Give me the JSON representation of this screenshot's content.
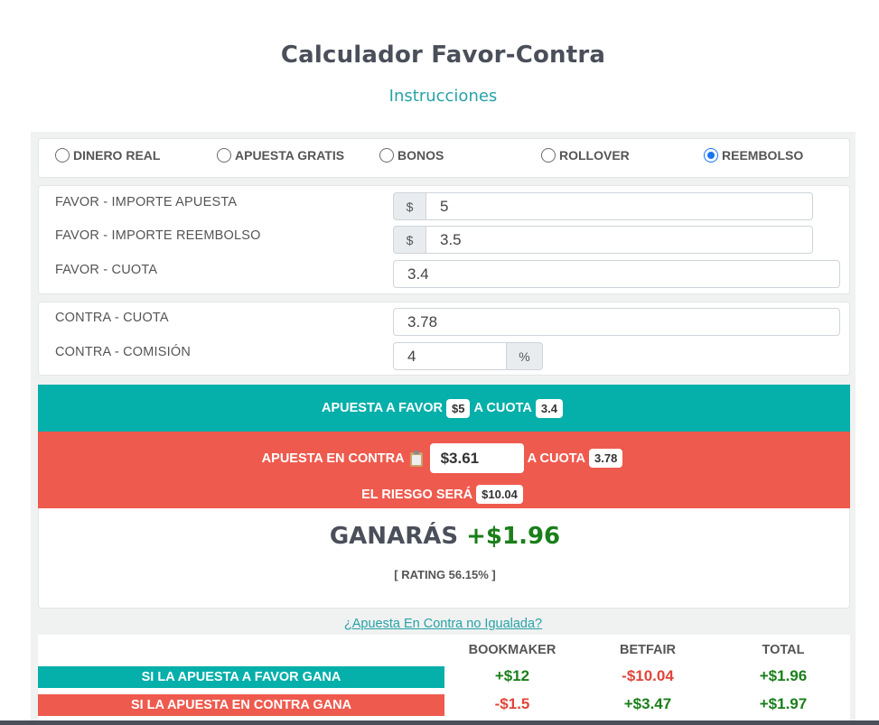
{
  "title": "Calculador Favor-Contra",
  "instructions_link": "Instrucciones",
  "modes": [
    {
      "label": "DINERO REAL",
      "checked": false
    },
    {
      "label": "APUESTA GRATIS",
      "checked": false
    },
    {
      "label": "BONOS",
      "checked": false
    },
    {
      "label": "ROLLOVER",
      "checked": false
    },
    {
      "label": "REEMBOLSO",
      "checked": true
    }
  ],
  "favor": {
    "stake_label": "FAVOR - IMPORTE APUESTA",
    "stake_prefix": "$",
    "stake_value": "5",
    "refund_label": "FAVOR - IMPORTE REEMBOLSO",
    "refund_prefix": "$",
    "refund_value": "3.5",
    "odds_label": "FAVOR - CUOTA",
    "odds_value": "3.4"
  },
  "contra": {
    "odds_label": "CONTRA - CUOTA",
    "odds_value": "3.78",
    "commission_label": "CONTRA - COMISIÓN",
    "commission_value": "4",
    "commission_suffix": "%"
  },
  "back_bar": {
    "prefix": "APUESTA A FAVOR",
    "stake": "$5",
    "mid": "A CUOTA",
    "odds": "3.4"
  },
  "lay_bar": {
    "prefix": "APUESTA EN CONTRA",
    "stake": "$3.61",
    "mid": "A CUOTA",
    "odds": "3.78",
    "risk_label": "EL RIESGO SERÁ",
    "risk_value": "$10.04"
  },
  "result": {
    "label": "GANARÁS",
    "value": "+$1.96",
    "rating": "[ RATING 56.15% ]"
  },
  "unmatched_link": "¿Apuesta En Contra no Igualada?",
  "table": {
    "headers": [
      "BOOKMAKER",
      "BETFAIR",
      "TOTAL"
    ],
    "rows": [
      {
        "label": "SI LA APUESTA A FAVOR GANA",
        "values": [
          "+$12",
          "-$10.04",
          "+$1.96"
        ]
      },
      {
        "label": "SI LA APUESTA EN CONTRA GANA",
        "values": [
          "-$1.5",
          "+$3.47",
          "+$1.97"
        ]
      }
    ]
  },
  "colors": {
    "teal": "#05afaa",
    "red": "#ef5a4e",
    "positive": "#1a7f1a",
    "negative": "#e0453a",
    "link": "#27a3a8"
  }
}
